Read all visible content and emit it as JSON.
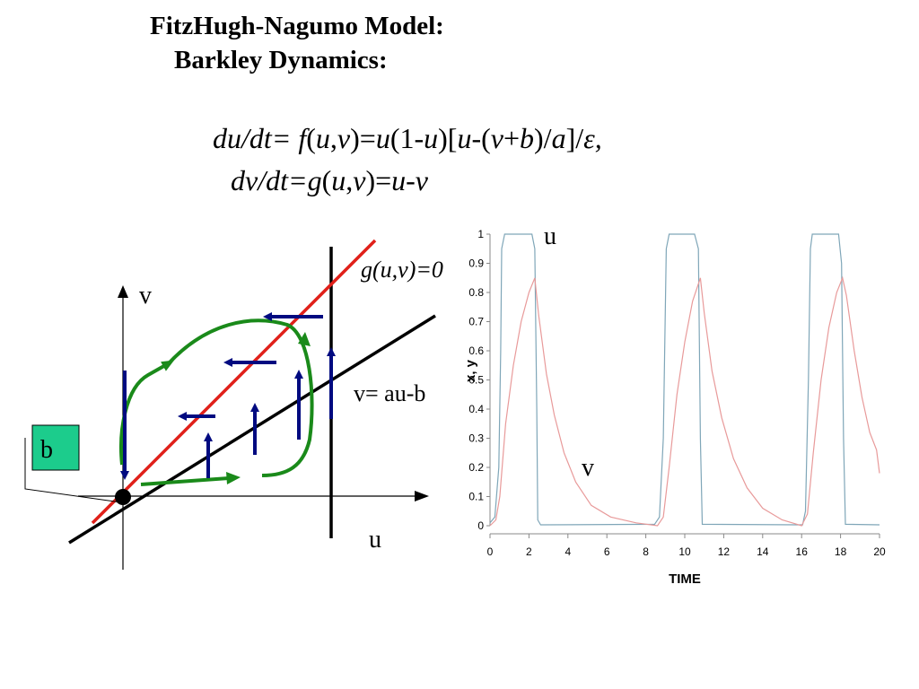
{
  "slide": {
    "title_line1": "FitzHugh-Nagumo  Model:",
    "title_line2": "Barkley Dynamics:",
    "equation1": {
      "parts": [
        "du/dt= ",
        "f",
        "(",
        "u",
        ",",
        "v",
        ")=",
        "u",
        "(1-",
        "u",
        ")[",
        "u",
        "-(",
        "v",
        "+",
        "b",
        ")/",
        "a",
        "]/",
        "ε",
        ","
      ]
    },
    "equation2": {
      "parts": [
        "dv/dt=",
        "g",
        "(",
        "u",
        ",",
        "v",
        ")=",
        "u",
        "-",
        "v"
      ]
    }
  },
  "phase_diagram": {
    "axis_u_label": "u",
    "axis_v_label": "v",
    "nullcline_g_label": "g(u,v)=0",
    "nullcline_v_label": "v= au-b",
    "b_box_label": "b",
    "colors": {
      "g_nullcline": "#e0201a",
      "v_nullcline": "#000000",
      "trajectory": "#1a8a1a",
      "arrows": "#000a80",
      "b_box": "#1ccc8c"
    }
  },
  "chart_data": {
    "type": "line",
    "xlabel": "TIME",
    "ylabel": "x, y",
    "xlim": [
      0,
      20
    ],
    "ylim": [
      0,
      1
    ],
    "x_ticks": [
      "0",
      "2",
      "4",
      "6",
      "8",
      "10",
      "12",
      "14",
      "16",
      "18",
      "20"
    ],
    "y_ticks": [
      "0",
      "0.1",
      "0.2",
      "0.3",
      "0.4",
      "0.5",
      "0.6",
      "0.7",
      "0.8",
      "0.9",
      "1"
    ],
    "annotations": [
      {
        "text": "u"
      },
      {
        "text": "v"
      }
    ],
    "series": [
      {
        "color": "#7fa6b8",
        "points": [
          [
            0,
            0.01
          ],
          [
            0.25,
            0.03
          ],
          [
            0.45,
            0.2
          ],
          [
            0.55,
            0.6
          ],
          [
            0.6,
            0.95
          ],
          [
            0.75,
            1
          ],
          [
            2.15,
            1
          ],
          [
            2.3,
            0.95
          ],
          [
            2.4,
            0.4
          ],
          [
            2.45,
            0.02
          ],
          [
            2.6,
            0.003
          ],
          [
            8.45,
            0.005
          ],
          [
            8.7,
            0.03
          ],
          [
            8.9,
            0.3
          ],
          [
            9.05,
            0.95
          ],
          [
            9.2,
            1
          ],
          [
            10.5,
            1
          ],
          [
            10.7,
            0.95
          ],
          [
            10.8,
            0.3
          ],
          [
            10.9,
            0.005
          ],
          [
            16.05,
            0.003
          ],
          [
            16.2,
            0.05
          ],
          [
            16.35,
            0.5
          ],
          [
            16.45,
            0.95
          ],
          [
            16.55,
            1
          ],
          [
            17.9,
            1
          ],
          [
            18.05,
            0.9
          ],
          [
            18.15,
            0.3
          ],
          [
            18.25,
            0.005
          ],
          [
            20,
            0.003
          ]
        ]
      },
      {
        "color": "#e89a9a",
        "points": [
          [
            0,
            0.0
          ],
          [
            0.3,
            0.02
          ],
          [
            0.5,
            0.1
          ],
          [
            0.8,
            0.35
          ],
          [
            1.2,
            0.55
          ],
          [
            1.6,
            0.7
          ],
          [
            2.0,
            0.8
          ],
          [
            2.3,
            0.85
          ],
          [
            2.5,
            0.72
          ],
          [
            2.9,
            0.52
          ],
          [
            3.3,
            0.38
          ],
          [
            3.8,
            0.25
          ],
          [
            4.4,
            0.15
          ],
          [
            5.2,
            0.07
          ],
          [
            6.2,
            0.03
          ],
          [
            7.5,
            0.01
          ],
          [
            8.6,
            0.0
          ],
          [
            8.9,
            0.03
          ],
          [
            9.2,
            0.2
          ],
          [
            9.6,
            0.45
          ],
          [
            10.0,
            0.63
          ],
          [
            10.4,
            0.77
          ],
          [
            10.8,
            0.85
          ],
          [
            11.0,
            0.73
          ],
          [
            11.4,
            0.53
          ],
          [
            11.9,
            0.37
          ],
          [
            12.5,
            0.23
          ],
          [
            13.2,
            0.13
          ],
          [
            14.0,
            0.06
          ],
          [
            15.0,
            0.02
          ],
          [
            16.0,
            0.0
          ],
          [
            16.3,
            0.04
          ],
          [
            16.6,
            0.25
          ],
          [
            17.0,
            0.5
          ],
          [
            17.4,
            0.68
          ],
          [
            17.8,
            0.8
          ],
          [
            18.1,
            0.85
          ],
          [
            18.3,
            0.79
          ],
          [
            18.7,
            0.6
          ],
          [
            19.1,
            0.44
          ],
          [
            19.5,
            0.32
          ],
          [
            19.85,
            0.26
          ],
          [
            20,
            0.18
          ]
        ]
      }
    ]
  }
}
